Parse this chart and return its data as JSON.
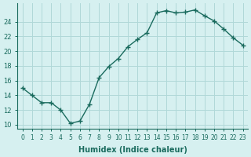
{
  "x": [
    0,
    1,
    2,
    3,
    4,
    5,
    6,
    7,
    8,
    9,
    10,
    11,
    12,
    13,
    14,
    15,
    16,
    17,
    18,
    19,
    20,
    21,
    22,
    23
  ],
  "y": [
    15,
    14,
    13,
    13,
    12,
    10.2,
    10.5,
    12.8,
    16.4,
    17.9,
    19.0,
    20.6,
    21.6,
    22.5,
    25.2,
    25.5,
    25.2,
    25.3,
    25.6,
    24.8,
    24.1,
    23.0,
    21.8,
    20.8
  ],
  "xlabel": "Humidex (Indice chaleur)",
  "ylabel": "",
  "line_color": "#1a6b5e",
  "bg_color": "#d6f0f0",
  "grid_color": "#b0d8d8",
  "marker": "+",
  "xlim": [
    -0.5,
    23.5
  ],
  "ylim": [
    9.5,
    26.5
  ],
  "yticks": [
    10,
    12,
    14,
    16,
    18,
    20,
    22,
    24
  ],
  "xticks": [
    0,
    1,
    2,
    3,
    4,
    5,
    6,
    7,
    8,
    9,
    10,
    11,
    12,
    13,
    14,
    15,
    16,
    17,
    18,
    19,
    20,
    21,
    22,
    23
  ]
}
